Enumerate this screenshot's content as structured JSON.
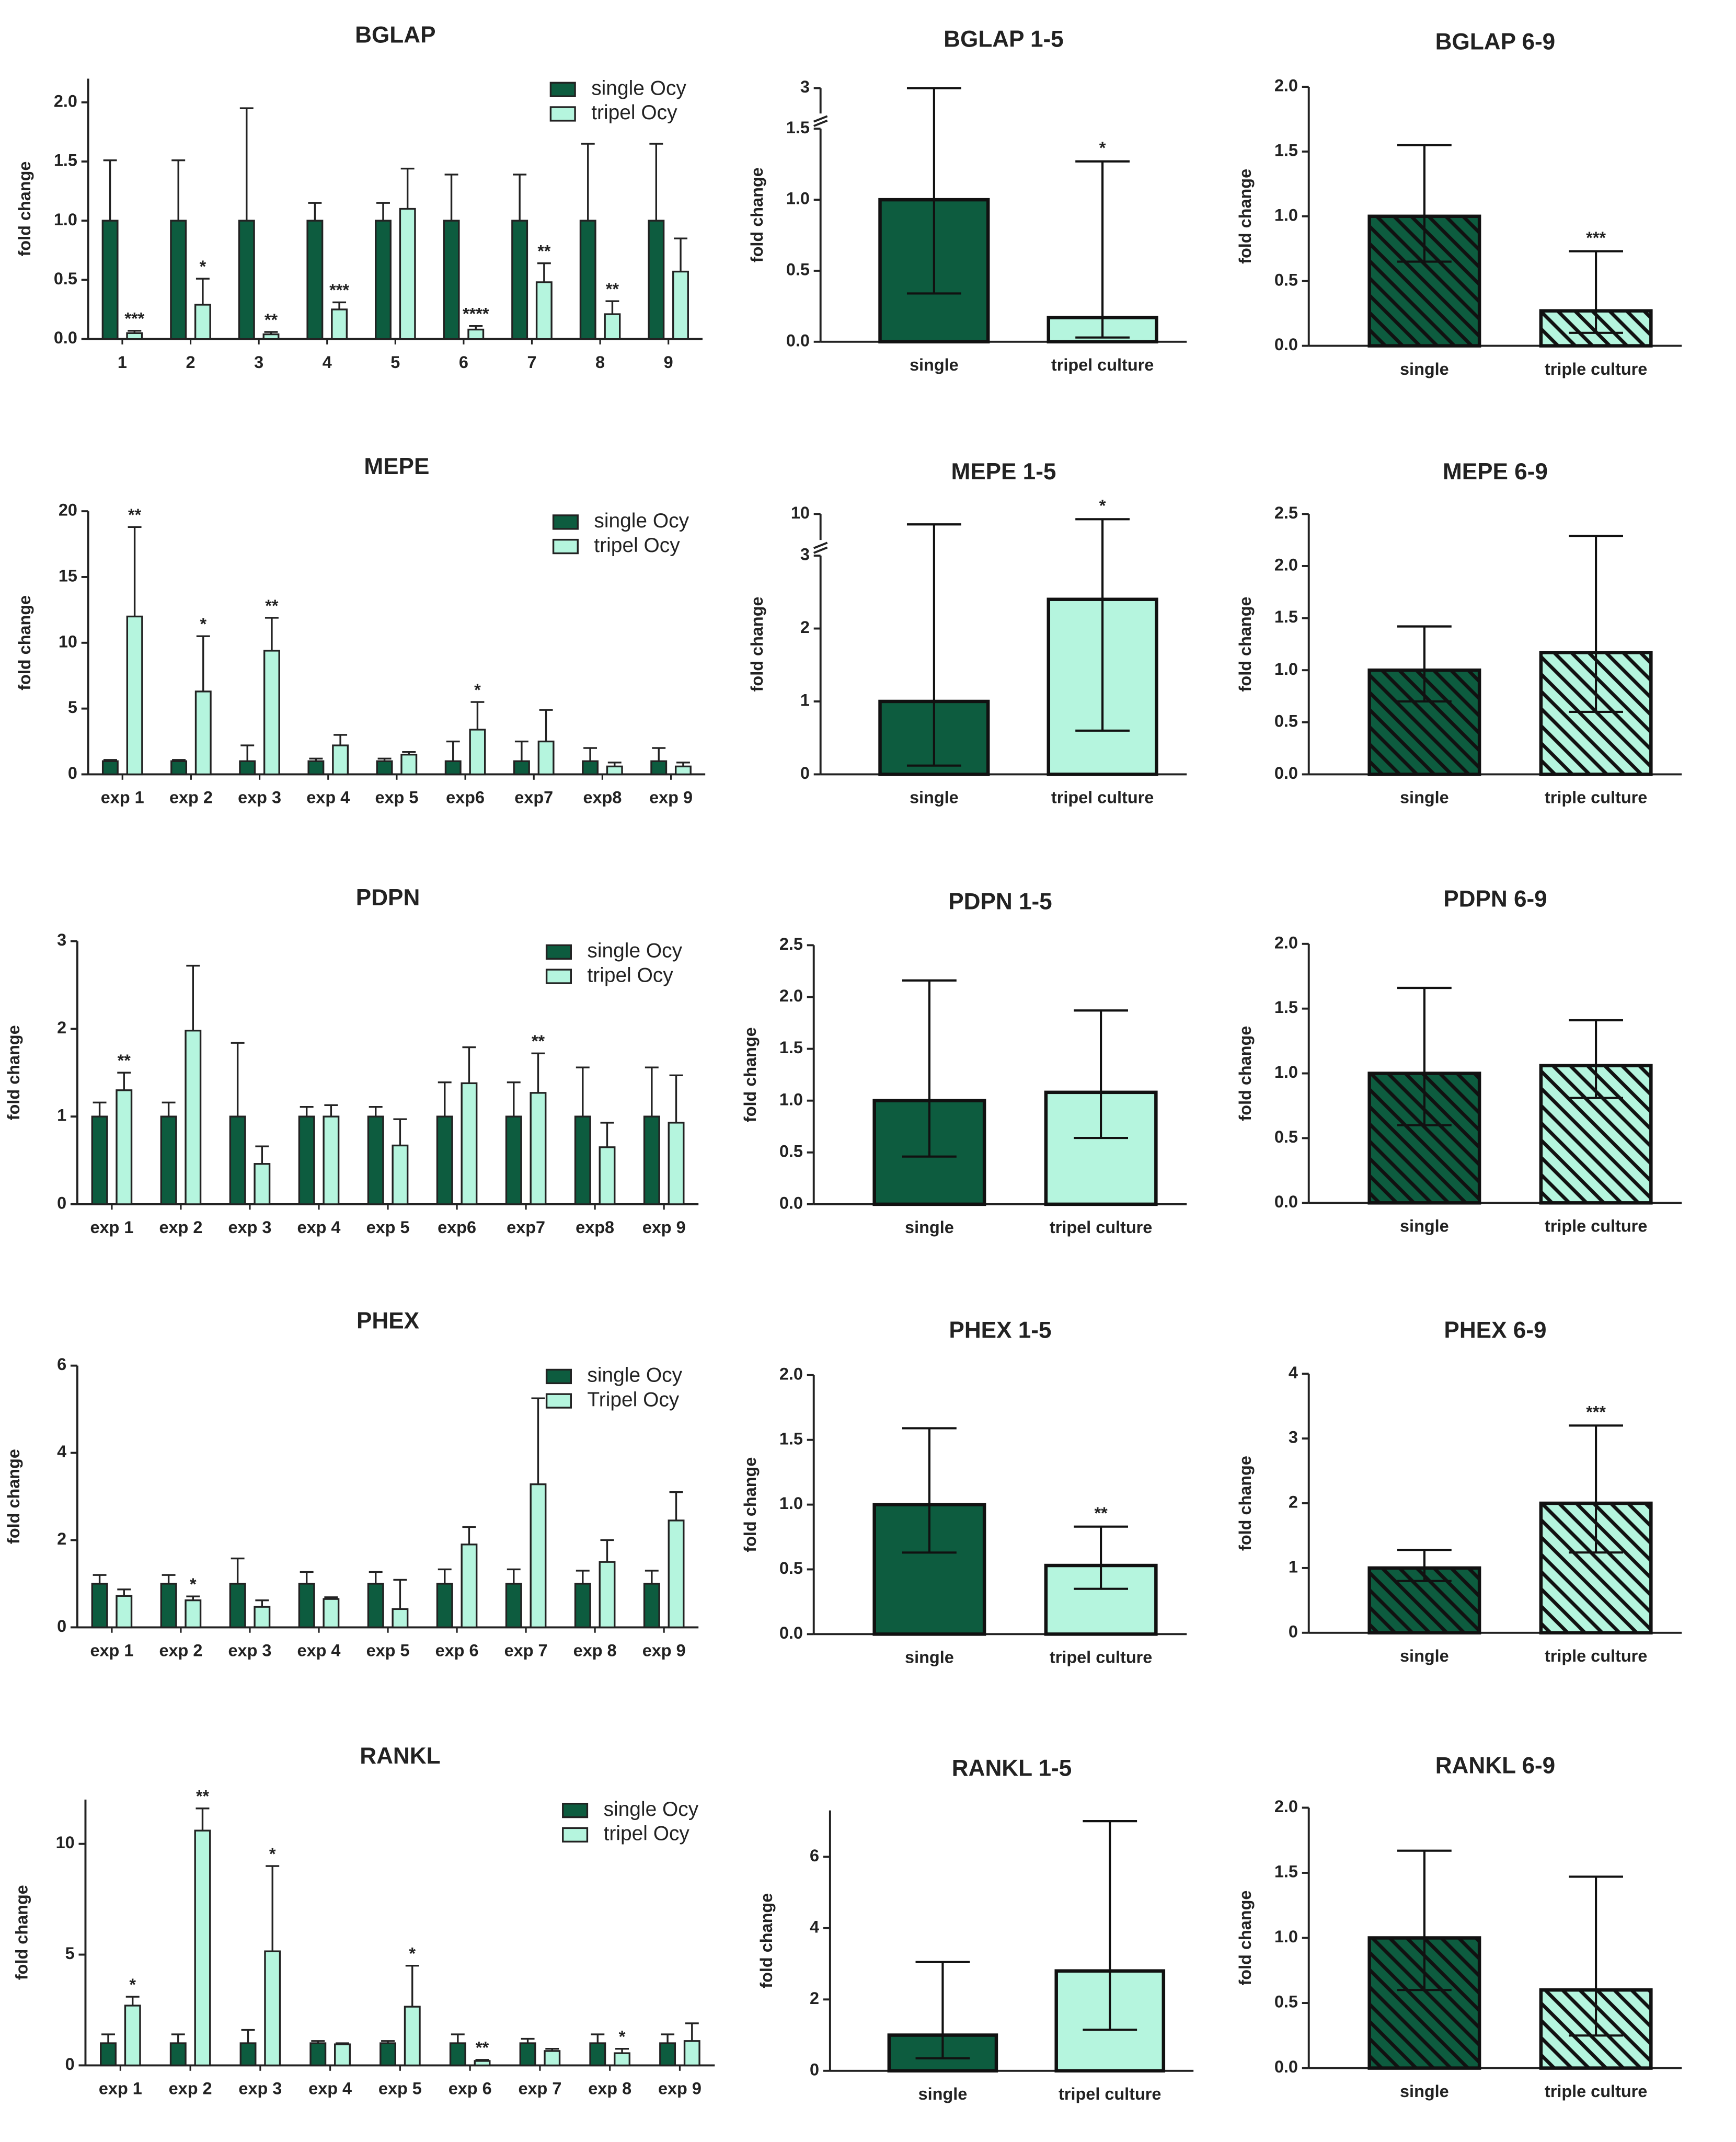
{
  "chart_data": [
    {
      "type": "bar",
      "title": "BGLAP",
      "ylabel": "fold change",
      "categories": [
        "1",
        "2",
        "3",
        "4",
        "5",
        "6",
        "7",
        "8",
        "9"
      ],
      "series": [
        {
          "name": "single Ocy",
          "color": "#0d5c3f",
          "values": [
            1,
            1,
            1,
            1,
            1,
            1,
            1,
            1,
            1
          ],
          "errors_plus": [
            0.51,
            0.51,
            0.95,
            0.15,
            0.15,
            0.39,
            0.39,
            0.65,
            0.65
          ]
        },
        {
          "name": "tripel Ocy",
          "color": "#b5f5de",
          "values": [
            0.05,
            0.29,
            0.04,
            0.25,
            1.1,
            0.08,
            0.48,
            0.21,
            0.57
          ],
          "errors_plus": [
            0.02,
            0.22,
            0.02,
            0.06,
            0.34,
            0.03,
            0.16,
            0.11,
            0.28
          ],
          "annotations": [
            "***",
            "*",
            "**",
            "***",
            null,
            "****",
            "**",
            "**",
            null
          ]
        }
      ],
      "ylim": [
        0,
        2.2
      ],
      "yticks": [
        {
          "value": 0,
          "label": "0.0"
        },
        {
          "value": 0.5,
          "label": "0.5"
        },
        {
          "value": 1,
          "label": "1.0"
        },
        {
          "value": 1.5,
          "label": "1.5"
        },
        {
          "value": 2,
          "label": "2.0"
        }
      ],
      "legend": "top-right",
      "grid": false
    },
    {
      "type": "bar",
      "title": "BGLAP 1-5",
      "ylabel": "fold change",
      "categories": [
        "single",
        "tripel culture"
      ],
      "values": [
        1,
        0.17
      ],
      "errors_plus": [
        2,
        1.1
      ],
      "errors_minus": [
        0.66,
        0.14
      ],
      "colors": [
        "#0d5c3f",
        "#b5f5de"
      ],
      "annotations": [
        null,
        "*"
      ],
      "ylim": [
        0,
        3
      ],
      "ybreak": [
        1.5,
        2.8
      ],
      "yticks": [
        {
          "value": 0,
          "label": "0.0"
        },
        {
          "value": 0.5,
          "label": "0.5"
        },
        {
          "value": 1,
          "label": "1.0"
        },
        {
          "value": 1.5,
          "label": "1.5"
        },
        3
      ],
      "hatch": false,
      "grid": false
    },
    {
      "type": "bar",
      "title": "BGLAP 6-9",
      "ylabel": "fold change",
      "categories": [
        "single",
        "triple culture"
      ],
      "values": [
        1,
        0.27
      ],
      "errors_plus": [
        0.55,
        0.46
      ],
      "errors_minus": [
        0.35,
        0.17
      ],
      "colors": [
        "#0d5c3f",
        "#b5f5de"
      ],
      "annotations": [
        null,
        "***"
      ],
      "ylim": [
        0,
        2
      ],
      "yticks": [
        {
          "value": 0,
          "label": "0.0"
        },
        {
          "value": 0.5,
          "label": "0.5"
        },
        {
          "value": 1,
          "label": "1.0"
        },
        {
          "value": 1.5,
          "label": "1.5"
        },
        {
          "value": 2,
          "label": "2.0"
        }
      ],
      "hatch": true,
      "grid": false
    },
    {
      "type": "bar",
      "title": "MEPE",
      "ylabel": "fold change",
      "categories": [
        "exp 1",
        "exp 2",
        "exp 3",
        "exp 4",
        "exp 5",
        "exp6",
        "exp7",
        "exp8",
        "exp 9"
      ],
      "series": [
        {
          "name": "single Ocy",
          "color": "#0d5c3f",
          "values": [
            1,
            1,
            1,
            1,
            1,
            1,
            1,
            1,
            1
          ],
          "errors_plus": [
            0.1,
            0.1,
            1.2,
            0.2,
            0.2,
            1.5,
            1.5,
            1.0,
            1.0
          ]
        },
        {
          "name": "tripel Ocy",
          "color": "#b5f5de",
          "values": [
            12,
            6.3,
            9.4,
            2.2,
            1.5,
            3.4,
            2.5,
            0.6,
            0.6
          ],
          "errors_plus": [
            6.8,
            4.2,
            2.5,
            0.8,
            0.2,
            2.1,
            2.4,
            0.3,
            0.3
          ],
          "annotations": [
            "**",
            "*",
            "**",
            null,
            null,
            "*",
            null,
            null,
            null
          ]
        }
      ],
      "ylim": [
        0,
        20
      ],
      "yticks": [
        0,
        5,
        10,
        15,
        20
      ],
      "legend": "top-right",
      "grid": false
    },
    {
      "type": "bar",
      "title": "MEPE 1-5",
      "ylabel": "fold change",
      "categories": [
        "single",
        "tripel culture"
      ],
      "values": [
        1,
        2.4
      ],
      "errors_plus": [
        8.6,
        7.4
      ],
      "errors_minus": [
        0.88,
        1.8
      ],
      "colors": [
        "#0d5c3f",
        "#b5f5de"
      ],
      "annotations": [
        null,
        "*"
      ],
      "ylim": [
        0,
        10
      ],
      "ybreak": [
        3,
        9
      ],
      "yticks": [
        0,
        1,
        2,
        3,
        10
      ],
      "hatch": false,
      "grid": false
    },
    {
      "type": "bar",
      "title": "MEPE 6-9",
      "ylabel": "fold change",
      "categories": [
        "single",
        "triple culture"
      ],
      "values": [
        1,
        1.17
      ],
      "errors_plus": [
        0.42,
        1.12
      ],
      "errors_minus": [
        0.3,
        0.57
      ],
      "colors": [
        "#0d5c3f",
        "#b5f5de"
      ],
      "ylim": [
        0,
        2.5
      ],
      "yticks": [
        {
          "value": 0,
          "label": "0.0"
        },
        {
          "value": 0.5,
          "label": "0.5"
        },
        {
          "value": 1,
          "label": "1.0"
        },
        {
          "value": 1.5,
          "label": "1.5"
        },
        {
          "value": 2,
          "label": "2.0"
        },
        {
          "value": 2.5,
          "label": "2.5"
        }
      ],
      "hatch": true,
      "grid": false
    },
    {
      "type": "bar",
      "title": "PDPN",
      "ylabel": "fold change",
      "categories": [
        "exp 1",
        "exp 2",
        "exp 3",
        "exp 4",
        "exp 5",
        "exp6",
        "exp7",
        "exp8",
        "exp 9"
      ],
      "series": [
        {
          "name": "single Ocy",
          "color": "#0d5c3f",
          "values": [
            1,
            1,
            1,
            1,
            1,
            1,
            1,
            1,
            1
          ],
          "errors_plus": [
            0.16,
            0.16,
            0.84,
            0.11,
            0.11,
            0.39,
            0.39,
            0.56,
            0.56
          ]
        },
        {
          "name": "tripel Ocy",
          "color": "#b5f5de",
          "values": [
            1.3,
            1.98,
            0.46,
            1.0,
            0.67,
            1.38,
            1.27,
            0.65,
            0.93
          ],
          "errors_plus": [
            0.2,
            0.74,
            0.2,
            0.13,
            0.3,
            0.41,
            0.45,
            0.28,
            0.54
          ],
          "annotations": [
            "**",
            null,
            null,
            null,
            null,
            null,
            "**",
            null,
            null
          ]
        }
      ],
      "ylim": [
        0,
        3
      ],
      "yticks": [
        0,
        1,
        2,
        3
      ],
      "legend": "top-right",
      "grid": false
    },
    {
      "type": "bar",
      "title": "PDPN 1-5",
      "ylabel": "fold change",
      "categories": [
        "single",
        "tripel culture"
      ],
      "values": [
        1,
        1.08
      ],
      "errors_plus": [
        1.16,
        0.79
      ],
      "errors_minus": [
        0.54,
        0.44
      ],
      "colors": [
        "#0d5c3f",
        "#b5f5de"
      ],
      "ylim": [
        0,
        2.5
      ],
      "yticks": [
        {
          "value": 0,
          "label": "0.0"
        },
        {
          "value": 0.5,
          "label": "0.5"
        },
        {
          "value": 1,
          "label": "1.0"
        },
        {
          "value": 1.5,
          "label": "1.5"
        },
        {
          "value": 2,
          "label": "2.0"
        },
        {
          "value": 2.5,
          "label": "2.5"
        }
      ],
      "hatch": false,
      "grid": false
    },
    {
      "type": "bar",
      "title": "PDPN 6-9",
      "ylabel": "fold change",
      "categories": [
        "single",
        "triple culture"
      ],
      "values": [
        1,
        1.06
      ],
      "errors_plus": [
        0.66,
        0.35
      ],
      "errors_minus": [
        0.4,
        0.25
      ],
      "colors": [
        "#0d5c3f",
        "#b5f5de"
      ],
      "ylim": [
        0,
        2
      ],
      "yticks": [
        {
          "value": 0,
          "label": "0.0"
        },
        {
          "value": 0.5,
          "label": "0.5"
        },
        {
          "value": 1,
          "label": "1.0"
        },
        {
          "value": 1.5,
          "label": "1.5"
        },
        {
          "value": 2,
          "label": "2.0"
        }
      ],
      "hatch": true,
      "grid": false
    },
    {
      "type": "bar",
      "title": "PHEX",
      "ylabel": "fold change",
      "categories": [
        "exp 1",
        "exp 2",
        "exp 3",
        "exp 4",
        "exp 5",
        "exp 6",
        "exp 7",
        "exp 8",
        "exp 9"
      ],
      "series": [
        {
          "name": "single Ocy",
          "color": "#0d5c3f",
          "values": [
            1,
            1,
            1,
            1,
            1,
            1,
            1,
            1,
            1
          ],
          "errors_plus": [
            0.2,
            0.2,
            0.58,
            0.27,
            0.27,
            0.33,
            0.33,
            0.3,
            0.3
          ]
        },
        {
          "name": "Tripel Ocy",
          "color": "#b5f5de",
          "values": [
            0.72,
            0.62,
            0.47,
            0.65,
            0.42,
            1.9,
            3.28,
            1.5,
            2.45
          ],
          "errors_plus": [
            0.15,
            0.09,
            0.15,
            0.04,
            0.67,
            0.4,
            1.97,
            0.5,
            0.65
          ],
          "annotations": [
            null,
            "*",
            null,
            null,
            null,
            null,
            null,
            null,
            null
          ]
        }
      ],
      "ylim": [
        0,
        6
      ],
      "yticks": [
        0,
        2,
        4,
        6
      ],
      "legend": "top-right",
      "grid": false
    },
    {
      "type": "bar",
      "title": "PHEX 1-5",
      "ylabel": "fold change",
      "categories": [
        "single",
        "tripel culture"
      ],
      "values": [
        1,
        0.53
      ],
      "errors_plus": [
        0.59,
        0.3
      ],
      "errors_minus": [
        0.37,
        0.18
      ],
      "colors": [
        "#0d5c3f",
        "#b5f5de"
      ],
      "annotations": [
        null,
        "**"
      ],
      "ylim": [
        0,
        2
      ],
      "yticks": [
        {
          "value": 0,
          "label": "0.0"
        },
        {
          "value": 0.5,
          "label": "0.5"
        },
        {
          "value": 1,
          "label": "1.0"
        },
        {
          "value": 1.5,
          "label": "1.5"
        },
        {
          "value": 2,
          "label": "2.0"
        }
      ],
      "hatch": false,
      "grid": false
    },
    {
      "type": "bar",
      "title": "PHEX 6-9",
      "ylabel": "fold change",
      "categories": [
        "single",
        "triple culture"
      ],
      "values": [
        1,
        2
      ],
      "errors_plus": [
        0.28,
        1.2
      ],
      "errors_minus": [
        0.2,
        0.76
      ],
      "colors": [
        "#0d5c3f",
        "#b5f5de"
      ],
      "annotations": [
        null,
        "***"
      ],
      "ylim": [
        0,
        4
      ],
      "yticks": [
        0,
        1,
        2,
        3,
        4
      ],
      "hatch": true,
      "grid": false
    },
    {
      "type": "bar",
      "title": "RANKL",
      "ylabel": "fold change",
      "categories": [
        "exp 1",
        "exp 2",
        "exp 3",
        "exp 4",
        "exp 5",
        "exp 6",
        "exp 7",
        "exp 8",
        "exp 9"
      ],
      "series": [
        {
          "name": "single Ocy",
          "color": "#0d5c3f",
          "values": [
            1,
            1,
            1,
            1,
            1,
            1,
            1,
            1,
            1
          ],
          "errors_plus": [
            0.4,
            0.4,
            0.6,
            0.1,
            0.1,
            0.4,
            0.2,
            0.4,
            0.4
          ]
        },
        {
          "name": "tripel Ocy",
          "color": "#b5f5de",
          "values": [
            2.7,
            10.6,
            5.15,
            0.95,
            2.65,
            0.2,
            0.65,
            0.55,
            1.1
          ],
          "errors_plus": [
            0.4,
            1.0,
            3.85,
            0.05,
            1.85,
            0.05,
            0.1,
            0.2,
            0.8
          ],
          "annotations": [
            "*",
            "**",
            "*",
            null,
            "*",
            "**",
            null,
            "*",
            null
          ]
        }
      ],
      "ylim": [
        0,
        12
      ],
      "yticks": [
        0,
        5,
        10
      ],
      "legend": "top-right",
      "grid": false
    },
    {
      "type": "bar",
      "title": "RANKL 1-5",
      "ylabel": "fold change",
      "categories": [
        "single",
        "tripel culture"
      ],
      "values": [
        1,
        2.8
      ],
      "errors_plus": [
        2.05,
        4.2
      ],
      "errors_minus": [
        0.65,
        1.65
      ],
      "colors": [
        "#0d5c3f",
        "#b5f5de"
      ],
      "ylim": [
        0,
        7.3
      ],
      "yticks": [
        0,
        2,
        4,
        6
      ],
      "hatch": false,
      "grid": false
    },
    {
      "type": "bar",
      "title": "RANKL 6-9",
      "ylabel": "fold change",
      "categories": [
        "single",
        "triple culture"
      ],
      "values": [
        1,
        0.6
      ],
      "errors_plus": [
        0.67,
        0.87
      ],
      "errors_minus": [
        0.4,
        0.35
      ],
      "colors": [
        "#0d5c3f",
        "#b5f5de"
      ],
      "ylim": [
        0,
        2
      ],
      "yticks": [
        {
          "value": 0,
          "label": "0.0"
        },
        {
          "value": 0.5,
          "label": "0.5"
        },
        {
          "value": 1,
          "label": "1.0"
        },
        {
          "value": 1.5,
          "label": "1.5"
        },
        {
          "value": 2,
          "label": "2.0"
        }
      ],
      "hatch": true,
      "grid": false
    }
  ]
}
